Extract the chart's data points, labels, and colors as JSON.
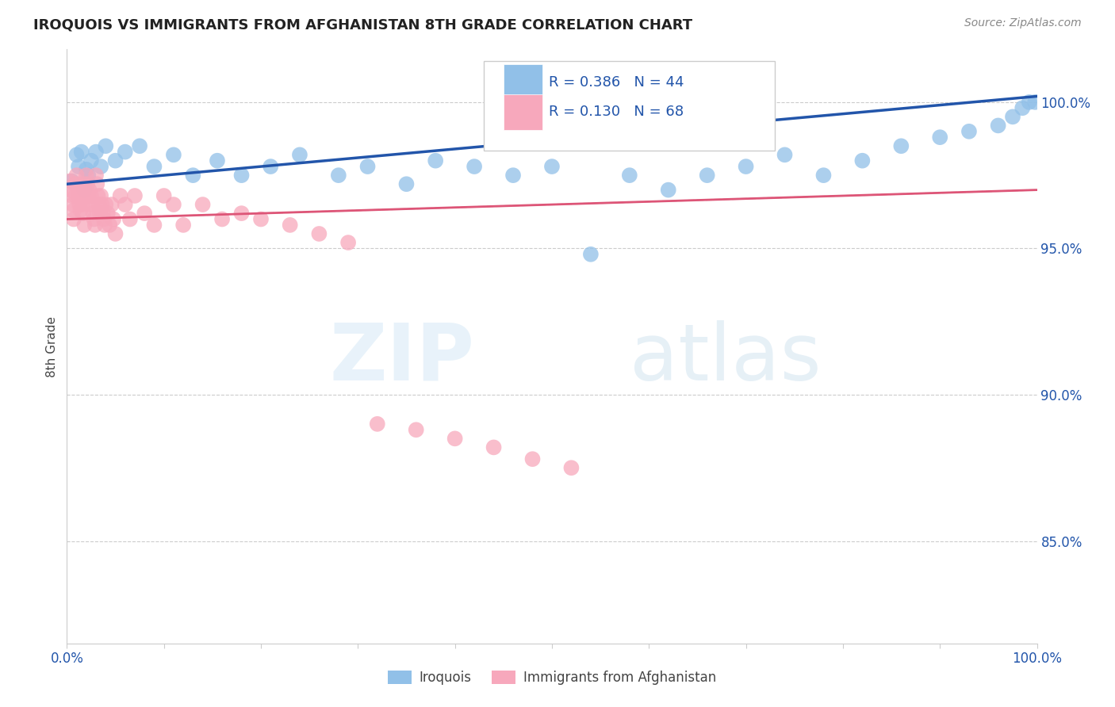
{
  "title": "IROQUOIS VS IMMIGRANTS FROM AFGHANISTAN 8TH GRADE CORRELATION CHART",
  "source": "Source: ZipAtlas.com",
  "ylabel": "8th Grade",
  "yticks_labels": [
    "100.0%",
    "95.0%",
    "90.0%",
    "85.0%"
  ],
  "yticks_values": [
    1.0,
    0.95,
    0.9,
    0.85
  ],
  "xlim": [
    0.0,
    1.0
  ],
  "ylim": [
    0.815,
    1.018
  ],
  "legend_blue_r": "R = 0.386",
  "legend_blue_n": "N = 44",
  "legend_pink_r": "R = 0.130",
  "legend_pink_n": "N = 68",
  "blue_color": "#91c0e8",
  "pink_color": "#f7a8bc",
  "blue_line_color": "#2255aa",
  "pink_line_color": "#dd5577",
  "blue_scatter_x": [
    0.005,
    0.01,
    0.012,
    0.015,
    0.018,
    0.02,
    0.022,
    0.025,
    0.03,
    0.035,
    0.04,
    0.05,
    0.06,
    0.075,
    0.09,
    0.11,
    0.13,
    0.155,
    0.18,
    0.21,
    0.24,
    0.28,
    0.31,
    0.35,
    0.38,
    0.42,
    0.46,
    0.5,
    0.54,
    0.58,
    0.62,
    0.66,
    0.7,
    0.74,
    0.78,
    0.82,
    0.86,
    0.9,
    0.93,
    0.96,
    0.975,
    0.985,
    0.992,
    0.998
  ],
  "blue_scatter_y": [
    0.973,
    0.982,
    0.978,
    0.983,
    0.97,
    0.977,
    0.975,
    0.98,
    0.983,
    0.978,
    0.985,
    0.98,
    0.983,
    0.985,
    0.978,
    0.982,
    0.975,
    0.98,
    0.975,
    0.978,
    0.982,
    0.975,
    0.978,
    0.972,
    0.98,
    0.978,
    0.975,
    0.978,
    0.948,
    0.975,
    0.97,
    0.975,
    0.978,
    0.982,
    0.975,
    0.98,
    0.985,
    0.988,
    0.99,
    0.992,
    0.995,
    0.998,
    1.0,
    1.0
  ],
  "pink_scatter_x": [
    0.003,
    0.004,
    0.005,
    0.006,
    0.007,
    0.007,
    0.008,
    0.009,
    0.01,
    0.011,
    0.012,
    0.013,
    0.014,
    0.015,
    0.015,
    0.016,
    0.017,
    0.018,
    0.018,
    0.019,
    0.02,
    0.021,
    0.022,
    0.023,
    0.024,
    0.025,
    0.026,
    0.027,
    0.028,
    0.029,
    0.03,
    0.031,
    0.032,
    0.033,
    0.034,
    0.035,
    0.036,
    0.037,
    0.038,
    0.039,
    0.04,
    0.042,
    0.044,
    0.046,
    0.048,
    0.05,
    0.055,
    0.06,
    0.065,
    0.07,
    0.08,
    0.09,
    0.1,
    0.11,
    0.12,
    0.14,
    0.16,
    0.18,
    0.2,
    0.23,
    0.26,
    0.29,
    0.32,
    0.36,
    0.4,
    0.44,
    0.48,
    0.52
  ],
  "pink_scatter_y": [
    0.973,
    0.97,
    0.968,
    0.965,
    0.963,
    0.96,
    0.972,
    0.968,
    0.975,
    0.972,
    0.968,
    0.965,
    0.963,
    0.97,
    0.967,
    0.965,
    0.962,
    0.958,
    0.972,
    0.968,
    0.975,
    0.972,
    0.968,
    0.97,
    0.965,
    0.968,
    0.965,
    0.962,
    0.96,
    0.958,
    0.975,
    0.972,
    0.968,
    0.965,
    0.962,
    0.968,
    0.965,
    0.962,
    0.96,
    0.958,
    0.965,
    0.962,
    0.958,
    0.965,
    0.96,
    0.955,
    0.968,
    0.965,
    0.96,
    0.968,
    0.962,
    0.958,
    0.968,
    0.965,
    0.958,
    0.965,
    0.96,
    0.962,
    0.96,
    0.958,
    0.955,
    0.952,
    0.89,
    0.888,
    0.885,
    0.882,
    0.878,
    0.875
  ]
}
